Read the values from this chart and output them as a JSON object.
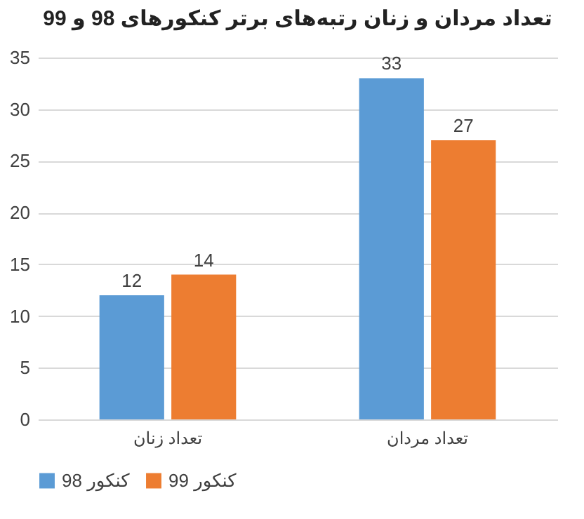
{
  "chart_data": {
    "type": "bar",
    "title": "تعداد مردان و زنان رتبه‌های برتر کنکورهای 98 و 99",
    "categories": [
      "تعداد زنان",
      "تعداد مردان"
    ],
    "series": [
      {
        "name": "کنکور 98",
        "color": "#5b9bd5",
        "values": [
          12,
          33
        ]
      },
      {
        "name": "کنکور 99",
        "color": "#ed7d31",
        "values": [
          14,
          27
        ]
      }
    ],
    "ylim": [
      0,
      35
    ],
    "yticks": [
      0,
      5,
      10,
      15,
      20,
      25,
      30,
      35
    ],
    "grid": "y",
    "legend": "bottom",
    "data_labels": true
  }
}
